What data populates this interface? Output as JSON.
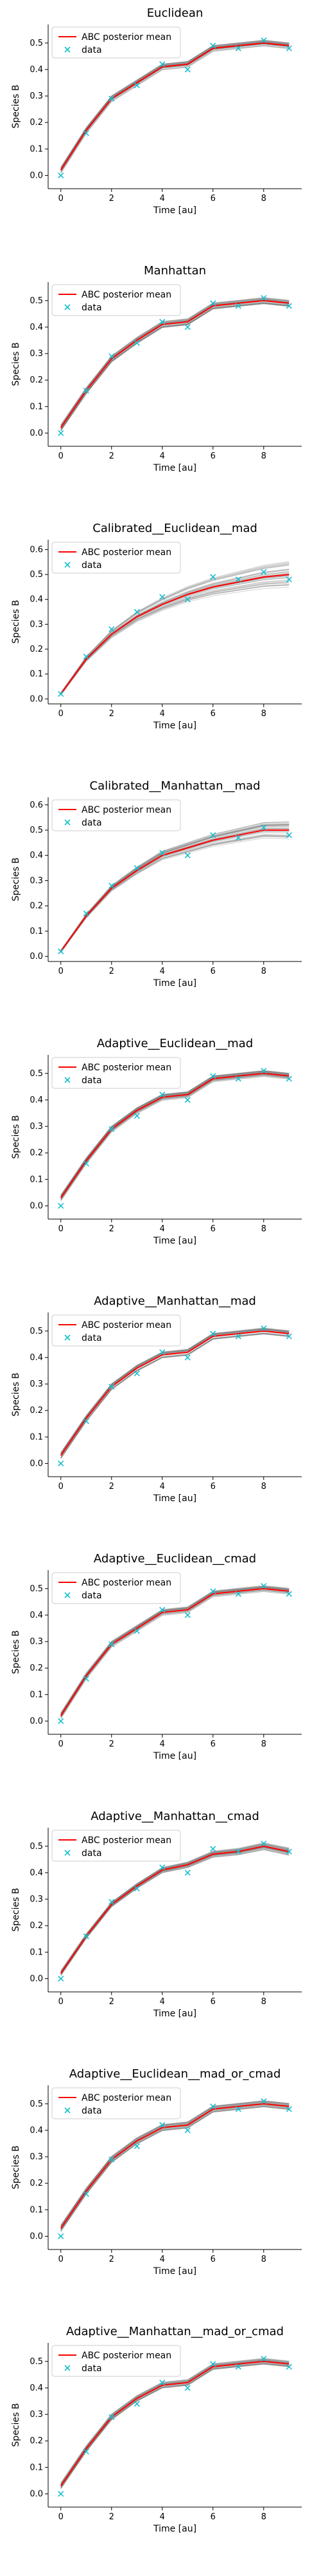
{
  "chart_data": [
    {
      "type": "line",
      "title": "Euclidean",
      "xlabel": "Time [au]",
      "ylabel": "Species B",
      "xlim": [
        -0.5,
        9.5
      ],
      "ylim": [
        -0.05,
        0.57
      ],
      "xticks": [
        0,
        2,
        4,
        6,
        8
      ],
      "yticks": [
        0.0,
        0.1,
        0.2,
        0.3,
        0.4,
        0.5
      ],
      "legend": "upper-left",
      "band_spread": 0.012,
      "band_growth": 0.0,
      "series": [
        {
          "name": "ABC posterior mean",
          "color": "#ff0000",
          "style": "line",
          "x": [
            0,
            1,
            2,
            3,
            4,
            5,
            6,
            7,
            8,
            9
          ],
          "y": [
            0.02,
            0.17,
            0.29,
            0.35,
            0.41,
            0.42,
            0.48,
            0.49,
            0.5,
            0.49
          ]
        },
        {
          "name": "data",
          "color": "#17becf",
          "style": "marker",
          "x": [
            0,
            1,
            2,
            3,
            4,
            5,
            6,
            7,
            8,
            9
          ],
          "y": [
            0.0,
            0.16,
            0.29,
            0.34,
            0.42,
            0.4,
            0.49,
            0.48,
            0.51,
            0.48
          ]
        }
      ]
    },
    {
      "type": "line",
      "title": "Manhattan",
      "xlabel": "Time [au]",
      "ylabel": "Species B",
      "xlim": [
        -0.5,
        9.5
      ],
      "ylim": [
        -0.05,
        0.57
      ],
      "xticks": [
        0,
        2,
        4,
        6,
        8
      ],
      "yticks": [
        0.0,
        0.1,
        0.2,
        0.3,
        0.4,
        0.5
      ],
      "legend": "upper-left",
      "band_spread": 0.012,
      "band_growth": 0.0,
      "series": [
        {
          "name": "ABC posterior mean",
          "color": "#ff0000",
          "style": "line",
          "x": [
            0,
            1,
            2,
            3,
            4,
            5,
            6,
            7,
            8,
            9
          ],
          "y": [
            0.02,
            0.16,
            0.28,
            0.35,
            0.41,
            0.42,
            0.48,
            0.49,
            0.5,
            0.49
          ]
        },
        {
          "name": "data",
          "color": "#17becf",
          "style": "marker",
          "x": [
            0,
            1,
            2,
            3,
            4,
            5,
            6,
            7,
            8,
            9
          ],
          "y": [
            0.0,
            0.16,
            0.29,
            0.34,
            0.42,
            0.4,
            0.49,
            0.48,
            0.51,
            0.48
          ]
        }
      ]
    },
    {
      "type": "line",
      "title": "Calibrated__Euclidean__mad",
      "xlabel": "Time [au]",
      "ylabel": "Species B",
      "xlim": [
        -0.5,
        9.5
      ],
      "ylim": [
        -0.02,
        0.64
      ],
      "xticks": [
        0,
        2,
        4,
        6,
        8
      ],
      "yticks": [
        0.0,
        0.1,
        0.2,
        0.3,
        0.4,
        0.5,
        0.6
      ],
      "legend": "upper-left",
      "band_spread": 0.005,
      "band_growth": 0.016,
      "series": [
        {
          "name": "ABC posterior mean",
          "color": "#ff0000",
          "style": "line",
          "x": [
            0,
            1,
            2,
            3,
            4,
            5,
            6,
            7,
            8,
            9
          ],
          "y": [
            0.02,
            0.16,
            0.26,
            0.33,
            0.38,
            0.42,
            0.45,
            0.47,
            0.49,
            0.5
          ]
        },
        {
          "name": "data",
          "color": "#17becf",
          "style": "marker",
          "x": [
            0,
            1,
            2,
            3,
            4,
            5,
            6,
            7,
            8,
            9
          ],
          "y": [
            0.02,
            0.17,
            0.28,
            0.35,
            0.41,
            0.4,
            0.49,
            0.48,
            0.51,
            0.48
          ]
        }
      ]
    },
    {
      "type": "line",
      "title": "Calibrated__Manhattan__mad",
      "xlabel": "Time [au]",
      "ylabel": "Species B",
      "xlim": [
        -0.5,
        9.5
      ],
      "ylim": [
        -0.02,
        0.63
      ],
      "xticks": [
        0,
        2,
        4,
        6,
        8
      ],
      "yticks": [
        0.0,
        0.1,
        0.2,
        0.3,
        0.4,
        0.5,
        0.6
      ],
      "legend": "upper-left",
      "band_spread": 0.005,
      "band_growth": 0.01,
      "series": [
        {
          "name": "ABC posterior mean",
          "color": "#ff0000",
          "style": "line",
          "x": [
            0,
            1,
            2,
            3,
            4,
            5,
            6,
            7,
            8,
            9
          ],
          "y": [
            0.02,
            0.16,
            0.27,
            0.34,
            0.4,
            0.43,
            0.46,
            0.48,
            0.5,
            0.5
          ]
        },
        {
          "name": "data",
          "color": "#17becf",
          "style": "marker",
          "x": [
            0,
            1,
            2,
            3,
            4,
            5,
            6,
            7,
            8,
            9
          ],
          "y": [
            0.02,
            0.17,
            0.28,
            0.35,
            0.41,
            0.4,
            0.48,
            0.47,
            0.51,
            0.48
          ]
        }
      ]
    },
    {
      "type": "line",
      "title": "Adaptive__Euclidean__mad",
      "xlabel": "Time [au]",
      "ylabel": "Species B",
      "xlim": [
        -0.5,
        9.5
      ],
      "ylim": [
        -0.05,
        0.57
      ],
      "xticks": [
        0,
        2,
        4,
        6,
        8
      ],
      "yticks": [
        0.0,
        0.1,
        0.2,
        0.3,
        0.4,
        0.5
      ],
      "legend": "upper-left",
      "band_spread": 0.012,
      "band_growth": 0.0,
      "series": [
        {
          "name": "ABC posterior mean",
          "color": "#ff0000",
          "style": "line",
          "x": [
            0,
            1,
            2,
            3,
            4,
            5,
            6,
            7,
            8,
            9
          ],
          "y": [
            0.03,
            0.17,
            0.29,
            0.36,
            0.41,
            0.42,
            0.48,
            0.49,
            0.5,
            0.49
          ]
        },
        {
          "name": "data",
          "color": "#17becf",
          "style": "marker",
          "x": [
            0,
            1,
            2,
            3,
            4,
            5,
            6,
            7,
            8,
            9
          ],
          "y": [
            0.0,
            0.16,
            0.29,
            0.34,
            0.42,
            0.4,
            0.49,
            0.48,
            0.51,
            0.48
          ]
        }
      ]
    },
    {
      "type": "line",
      "title": "Adaptive__Manhattan__mad",
      "xlabel": "Time [au]",
      "ylabel": "Species B",
      "xlim": [
        -0.5,
        9.5
      ],
      "ylim": [
        -0.05,
        0.57
      ],
      "xticks": [
        0,
        2,
        4,
        6,
        8
      ],
      "yticks": [
        0.0,
        0.1,
        0.2,
        0.3,
        0.4,
        0.5
      ],
      "legend": "upper-left",
      "band_spread": 0.012,
      "band_growth": 0.0,
      "series": [
        {
          "name": "ABC posterior mean",
          "color": "#ff0000",
          "style": "line",
          "x": [
            0,
            1,
            2,
            3,
            4,
            5,
            6,
            7,
            8,
            9
          ],
          "y": [
            0.03,
            0.17,
            0.29,
            0.36,
            0.41,
            0.42,
            0.48,
            0.49,
            0.5,
            0.49
          ]
        },
        {
          "name": "data",
          "color": "#17becf",
          "style": "marker",
          "x": [
            0,
            1,
            2,
            3,
            4,
            5,
            6,
            7,
            8,
            9
          ],
          "y": [
            0.0,
            0.16,
            0.29,
            0.34,
            0.42,
            0.4,
            0.49,
            0.48,
            0.51,
            0.48
          ]
        }
      ]
    },
    {
      "type": "line",
      "title": "Adaptive__Euclidean__cmad",
      "xlabel": "Time [au]",
      "ylabel": "Species B",
      "xlim": [
        -0.5,
        9.5
      ],
      "ylim": [
        -0.05,
        0.57
      ],
      "xticks": [
        0,
        2,
        4,
        6,
        8
      ],
      "yticks": [
        0.0,
        0.1,
        0.2,
        0.3,
        0.4,
        0.5
      ],
      "legend": "upper-left",
      "band_spread": 0.012,
      "band_growth": 0.0,
      "series": [
        {
          "name": "ABC posterior mean",
          "color": "#ff0000",
          "style": "line",
          "x": [
            0,
            1,
            2,
            3,
            4,
            5,
            6,
            7,
            8,
            9
          ],
          "y": [
            0.02,
            0.17,
            0.29,
            0.35,
            0.41,
            0.42,
            0.48,
            0.49,
            0.5,
            0.49
          ]
        },
        {
          "name": "data",
          "color": "#17becf",
          "style": "marker",
          "x": [
            0,
            1,
            2,
            3,
            4,
            5,
            6,
            7,
            8,
            9
          ],
          "y": [
            0.0,
            0.16,
            0.29,
            0.34,
            0.42,
            0.4,
            0.49,
            0.48,
            0.51,
            0.48
          ]
        }
      ]
    },
    {
      "type": "line",
      "title": "Adaptive__Manhattan__cmad",
      "xlabel": "Time [au]",
      "ylabel": "Species B",
      "xlim": [
        -0.5,
        9.5
      ],
      "ylim": [
        -0.05,
        0.57
      ],
      "xticks": [
        0,
        2,
        4,
        6,
        8
      ],
      "yticks": [
        0.0,
        0.1,
        0.2,
        0.3,
        0.4,
        0.5
      ],
      "legend": "upper-left",
      "band_spread": 0.01,
      "band_growth": 0.003,
      "series": [
        {
          "name": "ABC posterior mean",
          "color": "#ff0000",
          "style": "line",
          "x": [
            0,
            1,
            2,
            3,
            4,
            5,
            6,
            7,
            8,
            9
          ],
          "y": [
            0.02,
            0.16,
            0.28,
            0.35,
            0.41,
            0.43,
            0.47,
            0.48,
            0.5,
            0.48
          ]
        },
        {
          "name": "data",
          "color": "#17becf",
          "style": "marker",
          "x": [
            0,
            1,
            2,
            3,
            4,
            5,
            6,
            7,
            8,
            9
          ],
          "y": [
            0.0,
            0.16,
            0.29,
            0.34,
            0.42,
            0.4,
            0.49,
            0.48,
            0.51,
            0.48
          ]
        }
      ]
    },
    {
      "type": "line",
      "title": "Adaptive__Euclidean__mad_or_cmad",
      "xlabel": "Time [au]",
      "ylabel": "Species B",
      "xlim": [
        -0.5,
        9.5
      ],
      "ylim": [
        -0.05,
        0.57
      ],
      "xticks": [
        0,
        2,
        4,
        6,
        8
      ],
      "yticks": [
        0.0,
        0.1,
        0.2,
        0.3,
        0.4,
        0.5
      ],
      "legend": "upper-left",
      "band_spread": 0.012,
      "band_growth": 0.0,
      "series": [
        {
          "name": "ABC posterior mean",
          "color": "#ff0000",
          "style": "line",
          "x": [
            0,
            1,
            2,
            3,
            4,
            5,
            6,
            7,
            8,
            9
          ],
          "y": [
            0.03,
            0.17,
            0.29,
            0.36,
            0.41,
            0.42,
            0.48,
            0.49,
            0.5,
            0.49
          ]
        },
        {
          "name": "data",
          "color": "#17becf",
          "style": "marker",
          "x": [
            0,
            1,
            2,
            3,
            4,
            5,
            6,
            7,
            8,
            9
          ],
          "y": [
            0.0,
            0.16,
            0.29,
            0.34,
            0.42,
            0.4,
            0.49,
            0.48,
            0.51,
            0.48
          ]
        }
      ]
    },
    {
      "type": "line",
      "title": "Adaptive__Manhattan__mad_or_cmad",
      "xlabel": "Time [au]",
      "ylabel": "Species B",
      "xlim": [
        -0.5,
        9.5
      ],
      "ylim": [
        -0.05,
        0.57
      ],
      "xticks": [
        0,
        2,
        4,
        6,
        8
      ],
      "yticks": [
        0.0,
        0.1,
        0.2,
        0.3,
        0.4,
        0.5
      ],
      "legend": "upper-left",
      "band_spread": 0.012,
      "band_growth": 0.0,
      "series": [
        {
          "name": "ABC posterior mean",
          "color": "#ff0000",
          "style": "line",
          "x": [
            0,
            1,
            2,
            3,
            4,
            5,
            6,
            7,
            8,
            9
          ],
          "y": [
            0.03,
            0.17,
            0.29,
            0.36,
            0.41,
            0.42,
            0.48,
            0.49,
            0.5,
            0.49
          ]
        },
        {
          "name": "data",
          "color": "#17becf",
          "style": "marker",
          "x": [
            0,
            1,
            2,
            3,
            4,
            5,
            6,
            7,
            8,
            9
          ],
          "y": [
            0.0,
            0.16,
            0.29,
            0.34,
            0.42,
            0.4,
            0.49,
            0.48,
            0.51,
            0.48
          ]
        }
      ]
    }
  ]
}
